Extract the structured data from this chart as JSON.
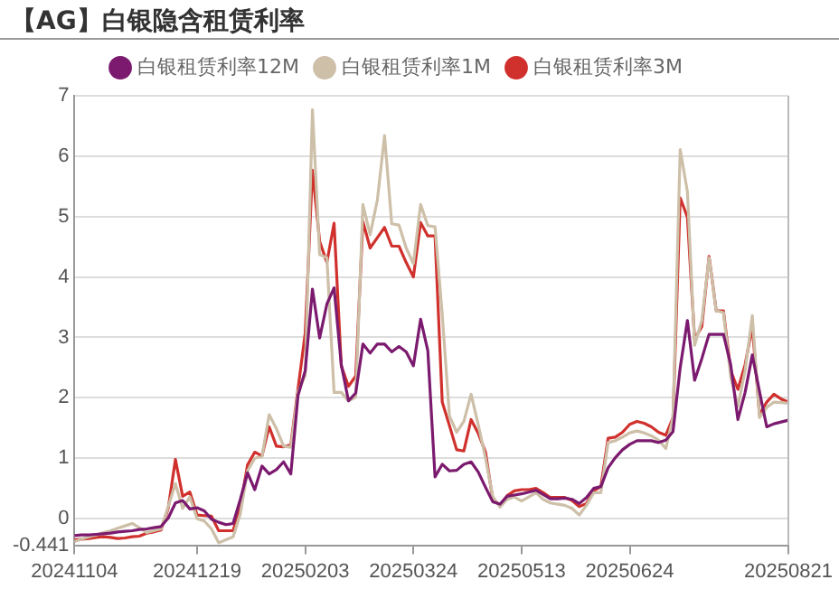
{
  "chart_data": {
    "type": "line",
    "title": "【AG】白银隐含租赁利率",
    "legend": "top",
    "grid": "y",
    "marker": "none",
    "line_style": "solid",
    "categories": [
      "20241104",
      null,
      null,
      null,
      null,
      null,
      null,
      null,
      null,
      null,
      null,
      null,
      null,
      null,
      null,
      null,
      null,
      "20241219",
      null,
      null,
      null,
      null,
      null,
      null,
      null,
      null,
      null,
      null,
      null,
      null,
      null,
      null,
      "20250203",
      null,
      null,
      null,
      null,
      null,
      null,
      null,
      null,
      null,
      null,
      null,
      null,
      null,
      null,
      "20250324",
      null,
      null,
      null,
      null,
      null,
      null,
      null,
      null,
      null,
      null,
      null,
      null,
      null,
      null,
      "20250513",
      null,
      null,
      null,
      null,
      null,
      null,
      null,
      null,
      null,
      null,
      null,
      null,
      null,
      null,
      "20250624",
      null,
      null,
      null,
      null,
      null,
      null,
      null,
      null,
      null,
      null,
      null,
      null,
      null,
      null,
      null,
      null,
      null,
      null,
      null,
      null,
      null,
      "20250821"
    ],
    "ylim": [
      -0.441,
      7
    ],
    "yticks": [
      -0.441,
      0,
      1,
      2,
      3,
      4,
      5,
      6,
      7
    ],
    "series": [
      {
        "name": "白银租赁利率12M",
        "color": "#7b1a6e",
        "values": [
          -0.28,
          -0.27,
          -0.27,
          -0.26,
          -0.25,
          -0.24,
          -0.22,
          -0.21,
          -0.2,
          -0.18,
          -0.17,
          -0.15,
          -0.13,
          0.01,
          0.26,
          0.3,
          0.16,
          0.18,
          0.13,
          -0.01,
          -0.06,
          -0.1,
          -0.08,
          0.32,
          0.76,
          0.48,
          0.87,
          0.74,
          0.81,
          0.94,
          0.74,
          2.04,
          2.45,
          3.8,
          2.99,
          3.55,
          3.82,
          2.55,
          1.95,
          2.08,
          2.89,
          2.74,
          2.89,
          2.89,
          2.76,
          2.85,
          2.76,
          2.53,
          3.3,
          2.78,
          0.69,
          0.9,
          0.79,
          0.8,
          0.9,
          0.94,
          0.77,
          0.52,
          0.28,
          0.24,
          0.37,
          0.39,
          0.41,
          0.44,
          0.47,
          0.4,
          0.33,
          0.33,
          0.34,
          0.32,
          0.25,
          0.35,
          0.5,
          0.53,
          0.84,
          1.01,
          1.14,
          1.23,
          1.29,
          1.29,
          1.29,
          1.26,
          1.3,
          1.44,
          2.5,
          3.28,
          2.29,
          2.65,
          3.05,
          3.05,
          3.05,
          2.55,
          1.64,
          2.09,
          2.71,
          2.1,
          1.52,
          1.57,
          1.6,
          1.63
        ]
      },
      {
        "name": "白银租赁利率1M",
        "color": "#cdbfa8",
        "values": [
          -0.38,
          -0.34,
          -0.3,
          -0.27,
          -0.23,
          -0.2,
          -0.16,
          -0.12,
          -0.08,
          -0.15,
          -0.23,
          -0.2,
          -0.17,
          0.2,
          0.58,
          0.17,
          0.36,
          0,
          -0.04,
          -0.17,
          -0.4,
          -0.35,
          -0.3,
          0.08,
          0.79,
          1.0,
          1.03,
          1.72,
          1.49,
          1.2,
          1.18,
          2.1,
          2.37,
          6.77,
          4.37,
          4.32,
          2.09,
          2.09,
          1.95,
          2.01,
          5.2,
          4.7,
          5.27,
          6.34,
          4.88,
          4.86,
          4.48,
          4.22,
          5.2,
          4.85,
          4.83,
          3.38,
          1.7,
          1.43,
          1.61,
          2.06,
          1.55,
          1.0,
          0.37,
          0.19,
          0.32,
          0.36,
          0.29,
          0.36,
          0.43,
          0.32,
          0.26,
          0.24,
          0.22,
          0.17,
          0.06,
          0.22,
          0.43,
          0.43,
          1.26,
          1.29,
          1.35,
          1.42,
          1.45,
          1.42,
          1.37,
          1.3,
          1.16,
          1.67,
          6.11,
          5.41,
          2.87,
          3.28,
          4.32,
          3.44,
          3.41,
          2.35,
          1.86,
          2.45,
          3.36,
          1.67,
          1.84,
          1.93,
          1.92,
          1.91
        ]
      },
      {
        "name": "白银租赁利率3M",
        "color": "#d0312d",
        "values": [
          -0.35,
          -0.34,
          -0.33,
          -0.31,
          -0.3,
          -0.31,
          -0.33,
          -0.32,
          -0.3,
          -0.29,
          -0.24,
          -0.22,
          -0.19,
          0.17,
          0.98,
          0.37,
          0.44,
          0.06,
          0.05,
          0.04,
          -0.2,
          -0.2,
          -0.2,
          0.2,
          0.89,
          1.1,
          1.04,
          1.52,
          1.2,
          1.19,
          1.22,
          2.15,
          3.07,
          5.77,
          4.59,
          4.24,
          4.89,
          2.53,
          2.19,
          2.36,
          4.92,
          4.48,
          4.65,
          4.82,
          4.51,
          4.51,
          4.24,
          4.0,
          4.9,
          4.68,
          4.68,
          1.93,
          1.54,
          1.14,
          1.12,
          1.64,
          1.41,
          1.1,
          0.32,
          0.22,
          0.38,
          0.46,
          0.48,
          0.48,
          0.5,
          0.43,
          0.35,
          0.35,
          0.35,
          0.3,
          0.2,
          0.25,
          0.46,
          0.53,
          1.33,
          1.35,
          1.43,
          1.56,
          1.61,
          1.58,
          1.52,
          1.43,
          1.38,
          1.67,
          5.31,
          4.99,
          2.97,
          3.18,
          4.34,
          3.44,
          3.44,
          2.45,
          2.14,
          2.55,
          3.18,
          1.72,
          1.93,
          2.06,
          1.98,
          1.93
        ]
      }
    ]
  }
}
